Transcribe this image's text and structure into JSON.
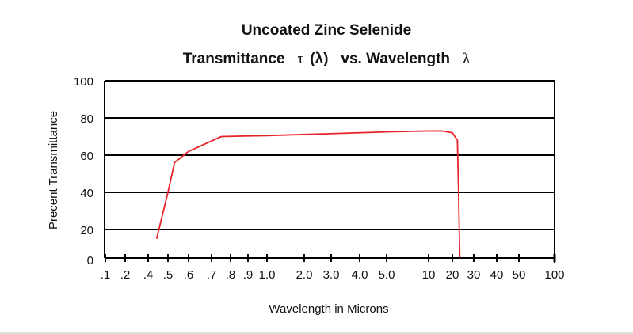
{
  "chart_data": {
    "type": "line",
    "title": "Uncoated Zinc Selenide",
    "subtitle": "Transmittance  τ (λ)  vs. Wavelength  λ",
    "subtitle_parts": [
      "Transmittance",
      "τ",
      "(λ)",
      "vs. Wavelength",
      "λ"
    ],
    "xlabel": "Wavelength in Microns",
    "ylabel": "Precent Transmittance",
    "xscale": "log-like (non-uniform)",
    "xlim": [
      0.1,
      100
    ],
    "ylim": [
      0,
      100
    ],
    "x_ticks": [
      0.1,
      0.2,
      0.4,
      0.5,
      0.6,
      0.7,
      0.8,
      0.9,
      1.0,
      2.0,
      3.0,
      4.0,
      5.0,
      10,
      20,
      30,
      40,
      50,
      100
    ],
    "x_tick_labels": [
      ".1",
      ".2",
      ".4",
      ".5",
      ".6",
      ".7",
      ".8",
      ".9",
      "1.0",
      "2.0",
      "3.0",
      "4.0",
      "5.0",
      "10",
      "20",
      "30",
      "40",
      "50",
      "100"
    ],
    "y_ticks": [
      0,
      20,
      40,
      60,
      80,
      100
    ],
    "y_tick_labels": [
      "0",
      "20",
      "40",
      "60",
      "80",
      "100"
    ],
    "grid": true,
    "series": [
      {
        "name": "Transmittance",
        "color": "#e8232a",
        "x": [
          0.44,
          0.5,
          0.53,
          0.6,
          0.75,
          1.0,
          5.0,
          10,
          15,
          20,
          22,
          22.5,
          23
        ],
        "y": [
          15,
          40,
          56,
          62,
          70,
          70.5,
          72.5,
          73,
          73,
          72,
          68,
          40,
          5
        ]
      }
    ]
  }
}
